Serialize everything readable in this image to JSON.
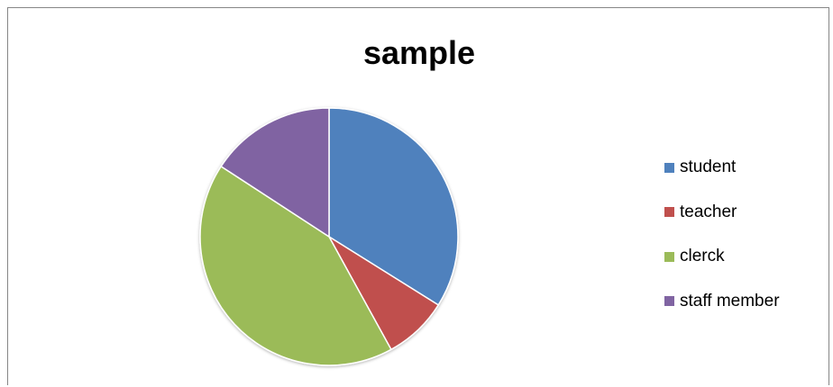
{
  "chart_data": {
    "type": "pie",
    "title": "sample",
    "categories": [
      "student",
      "teacher",
      "clerck",
      "staff member"
    ],
    "values": [
      33.9,
      8.1,
      42.2,
      15.8
    ],
    "colors": [
      "#4f81bd",
      "#c0504d",
      "#9bbb59",
      "#8064a2"
    ],
    "legend_position": "right"
  }
}
